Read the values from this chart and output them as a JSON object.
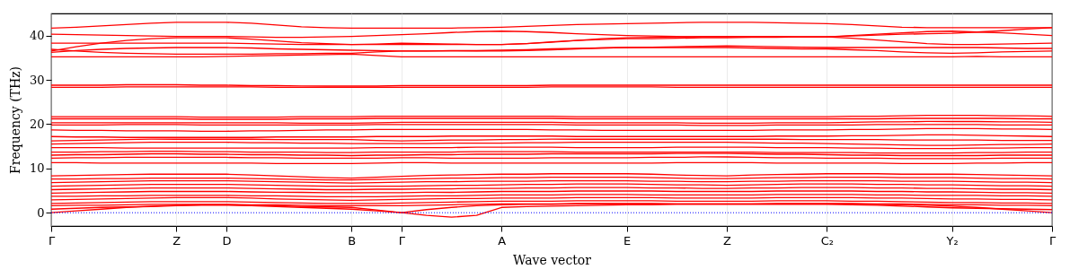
{
  "chart_data": {
    "type": "line",
    "xlabel": "Wave vector",
    "ylabel": "Frequency (THz)",
    "categories": [
      "Γ",
      null,
      null,
      null,
      null,
      "Z",
      null,
      "D",
      null,
      null,
      null,
      null,
      "B",
      null,
      "Γ",
      null,
      null,
      null,
      "A",
      null,
      null,
      null,
      null,
      "E",
      null,
      null,
      null,
      "Z",
      null,
      null,
      null,
      "C₂",
      null,
      null,
      null,
      null,
      "Y₂",
      null,
      null,
      null,
      "Γ"
    ],
    "ylim": [
      -3,
      45
    ],
    "yticks": [
      0,
      10,
      20,
      30,
      40
    ],
    "grid": "x",
    "marker": "none",
    "line_style": "solid",
    "ref_lines": [
      {
        "axis": "y",
        "value": 0,
        "color": "#0000ff",
        "line_style": "dotted"
      }
    ],
    "series": [
      {
        "color": "#ff0000",
        "values": [
          41.7,
          41.9,
          42.2,
          42.5,
          42.8,
          43,
          43,
          43,
          42.8,
          42.4,
          42,
          41.8,
          41.7,
          41.7,
          41.7,
          41.7,
          41.7,
          41.8,
          41.9,
          42.1,
          42.3,
          42.5,
          42.6,
          42.7,
          42.8,
          42.9,
          43,
          43,
          43,
          42.9,
          42.8,
          42.7,
          42.5,
          42.2,
          41.9,
          41.8,
          41.8,
          41.8,
          41.8,
          41.8,
          41.8
        ]
      },
      {
        "color": "#ff0000",
        "values": [
          40.3,
          40.2,
          40.1,
          40,
          39.9,
          39.8,
          39.8,
          39.8,
          39.7,
          39.6,
          39.6,
          39.7,
          39.8,
          40,
          40.2,
          40.4,
          40.7,
          40.9,
          41,
          40.9,
          40.7,
          40.4,
          40.2,
          40,
          39.9,
          39.8,
          39.7,
          39.7,
          39.7,
          39.7,
          39.7,
          39.7,
          40,
          40.3,
          40.6,
          40.9,
          41,
          40.8,
          40.6,
          40.3,
          40
        ]
      },
      {
        "color": "#ff0000",
        "values": [
          36.5,
          37.5,
          38.3,
          38.9,
          39.3,
          39.5,
          39.5,
          39.5,
          39.2,
          38.8,
          38.4,
          38.2,
          38,
          38,
          38,
          38,
          38,
          38,
          38,
          38.2,
          38.5,
          38.9,
          39.3,
          39.5,
          39.6,
          39.7,
          39.8,
          39.8,
          39.8,
          39.8,
          39.7,
          39.7,
          39.4,
          39,
          38.6,
          38.2,
          38,
          38,
          38.1,
          38.2,
          38.3
        ]
      },
      {
        "color": "#ff0000",
        "values": [
          38.3,
          38.3,
          38.3,
          38.3,
          38.3,
          38.3,
          38.3,
          38.3,
          38.2,
          38.1,
          38,
          38,
          38,
          38.1,
          38.3,
          38.2,
          38.1,
          38,
          38,
          38.2,
          38.6,
          38.9,
          39.1,
          39.3,
          39.3,
          39.4,
          39.5,
          39.5,
          39.6,
          39.6,
          39.7,
          39.7,
          39.9,
          40.1,
          40.3,
          40.4,
          40.5,
          40.8,
          41.1,
          41.5,
          41.8
        ]
      },
      {
        "color": "#ff0000",
        "values": [
          36.2,
          36.6,
          36.9,
          37.1,
          37.2,
          37.3,
          37.3,
          37.3,
          37.2,
          37,
          36.9,
          36.8,
          36.7,
          36.6,
          36.5,
          36.5,
          36.6,
          36.6,
          36.7,
          36.8,
          37,
          37.1,
          37.2,
          37.3,
          37.4,
          37.5,
          37.6,
          37.7,
          37.6,
          37.5,
          37.4,
          37.3,
          37.3,
          37.3,
          37.3,
          37.3,
          37.3,
          37.3,
          37.2,
          37.1,
          37.1
        ]
      },
      {
        "color": "#ff0000",
        "values": [
          36.9,
          36.5,
          36.2,
          36,
          35.9,
          35.8,
          35.8,
          35.8,
          35.8,
          35.9,
          35.9,
          36,
          36,
          36.3,
          36.5,
          36.5,
          36.5,
          36.5,
          36.5,
          36.6,
          36.8,
          37,
          37.2,
          37.3,
          37.3,
          37.3,
          37.3,
          37.3,
          37.2,
          37.1,
          37,
          37,
          36.8,
          36.6,
          36.3,
          36.1,
          36,
          36.1,
          36.3,
          36.4,
          36.5
        ]
      },
      {
        "color": "#ff0000",
        "values": [
          35.2,
          35.2,
          35.2,
          35.2,
          35.2,
          35.2,
          35.2,
          35.3,
          35.4,
          35.5,
          35.6,
          35.7,
          35.8,
          35.5,
          35.2,
          35.2,
          35.2,
          35.2,
          35.2,
          35.2,
          35.2,
          35.2,
          35.2,
          35.2,
          35.2,
          35.2,
          35.2,
          35.2,
          35.2,
          35.2,
          35.2,
          35.2,
          35.2,
          35.2,
          35.2,
          35.2,
          35.2,
          35.3,
          35.2,
          35.2,
          35.2
        ]
      },
      {
        "color": "#ff0000",
        "values": [
          28.8,
          28.8,
          28.8,
          28.9,
          28.9,
          28.9,
          28.8,
          28.8,
          28.7,
          28.7,
          28.6,
          28.6,
          28.6,
          28.6,
          28.7,
          28.7,
          28.7,
          28.7,
          28.7,
          28.7,
          28.8,
          28.8,
          28.8,
          28.8,
          28.8,
          28.8,
          28.8,
          28.8,
          28.8,
          28.8,
          28.8,
          28.8,
          28.8,
          28.8,
          28.8,
          28.8,
          28.8,
          28.8,
          28.8,
          28.8,
          28.8
        ]
      },
      {
        "color": "#ff0000",
        "values": [
          28.3,
          28.3,
          28.3,
          28.4,
          28.4,
          28.4,
          28.4,
          28.4,
          28.4,
          28.3,
          28.3,
          28.3,
          28.3,
          28.3,
          28.3,
          28.3,
          28.3,
          28.3,
          28.3,
          28.3,
          28.4,
          28.4,
          28.4,
          28.4,
          28.4,
          28.3,
          28.3,
          28.3,
          28.3,
          28.3,
          28.3,
          28.3,
          28.3,
          28.3,
          28.3,
          28.3,
          28.3,
          28.3,
          28.3,
          28.3,
          28.3
        ]
      },
      {
        "color": "#ff0000",
        "values": [
          21.7,
          21.7,
          21.7,
          21.7,
          21.7,
          21.7,
          21.6,
          21.6,
          21.6,
          21.6,
          21.7,
          21.7,
          21.7,
          21.8,
          21.8,
          21.8,
          21.8,
          21.8,
          21.8,
          21.8,
          21.8,
          21.7,
          21.7,
          21.7,
          21.7,
          21.7,
          21.7,
          21.7,
          21.7,
          21.7,
          21.7,
          21.7,
          21.8,
          21.8,
          21.9,
          22,
          22,
          22,
          21.9,
          21.9,
          21.8
        ]
      },
      {
        "color": "#ff0000",
        "values": [
          21.2,
          21.2,
          21.2,
          21.2,
          21.2,
          21.2,
          21.1,
          21.1,
          21.1,
          21.1,
          21.2,
          21.2,
          21.2,
          21.3,
          21.3,
          21.3,
          21.3,
          21.3,
          21.3,
          21.3,
          21.3,
          21.2,
          21.2,
          21.2,
          21.2,
          21.2,
          21.2,
          21.2,
          21.2,
          21.2,
          21.2,
          21.2,
          21.2,
          21.2,
          21.3,
          21.3,
          21.3,
          21.3,
          21.3,
          21.2,
          21.2
        ]
      },
      {
        "color": "#ff0000",
        "values": [
          20.3,
          20.3,
          20.3,
          20.3,
          20.3,
          20.3,
          20.3,
          20.3,
          20.3,
          20.3,
          20.2,
          20.2,
          20.2,
          20.3,
          20.4,
          20.4,
          20.4,
          20.4,
          20.4,
          20.4,
          20.4,
          20.3,
          20.3,
          20.3,
          20.3,
          20.3,
          20.2,
          20.2,
          20.2,
          20.3,
          20.3,
          20.3,
          20.4,
          20.5,
          20.5,
          20.6,
          20.6,
          20.6,
          20.5,
          20.5,
          20.4
        ]
      },
      {
        "color": "#ff0000",
        "values": [
          19.8,
          19.8,
          19.8,
          19.9,
          19.9,
          19.9,
          19.8,
          19.8,
          19.8,
          19.8,
          19.8,
          19.8,
          19.8,
          19.9,
          19.9,
          19.9,
          19.9,
          19.9,
          19.9,
          19.9,
          19.9,
          19.8,
          19.8,
          19.8,
          19.8,
          19.8,
          19.7,
          19.7,
          19.7,
          19.8,
          19.8,
          19.8,
          19.8,
          19.9,
          19.9,
          19.9,
          19.9,
          19.9,
          19.8,
          19.8,
          19.8
        ]
      },
      {
        "color": "#ff0000",
        "values": [
          18.7,
          18.6,
          18.6,
          18.5,
          18.5,
          18.5,
          18.4,
          18.4,
          18.5,
          18.5,
          18.6,
          18.7,
          18.7,
          18.8,
          18.8,
          18.8,
          18.8,
          18.8,
          18.8,
          18.8,
          18.7,
          18.7,
          18.6,
          18.6,
          18.6,
          18.6,
          18.6,
          18.6,
          18.6,
          18.7,
          18.7,
          18.7,
          18.8,
          18.8,
          18.9,
          19,
          19,
          19,
          18.9,
          18.9,
          18.8
        ]
      },
      {
        "color": "#ff0000",
        "values": [
          17.2,
          17.1,
          17.1,
          17,
          17,
          17,
          17,
          17,
          17,
          17.1,
          17.1,
          17.1,
          17.1,
          17.2,
          17.2,
          17.2,
          17.3,
          17.3,
          17.3,
          17.3,
          17.3,
          17.2,
          17.2,
          17.2,
          17.2,
          17.2,
          17.2,
          17.2,
          17.2,
          17.3,
          17.3,
          17.3,
          17.4,
          17.4,
          17.5,
          17.6,
          17.6,
          17.5,
          17.4,
          17.3,
          17.2
        ]
      },
      {
        "color": "#ff0000",
        "values": [
          16.2,
          16.3,
          16.4,
          16.5,
          16.6,
          16.6,
          16.6,
          16.6,
          16.6,
          16.5,
          16.5,
          16.5,
          16.5,
          16.3,
          16.2,
          16.3,
          16.4,
          16.4,
          16.5,
          16.5,
          16.6,
          16.6,
          16.6,
          16.6,
          16.6,
          16.6,
          16.6,
          16.6,
          16.6,
          16.6,
          16.5,
          16.5,
          16.5,
          16.5,
          16.4,
          16.4,
          16.4,
          16.4,
          16.3,
          16.3,
          16.3
        ]
      },
      {
        "color": "#ff0000",
        "values": [
          15.5,
          15.6,
          15.7,
          15.8,
          15.9,
          15.9,
          15.9,
          15.9,
          15.8,
          15.8,
          15.7,
          15.7,
          15.6,
          15.6,
          15.6,
          15.6,
          15.7,
          15.7,
          15.7,
          15.8,
          15.8,
          15.9,
          15.9,
          15.9,
          15.9,
          15.9,
          15.9,
          15.9,
          15.8,
          15.7,
          15.7,
          15.6,
          15.5,
          15.4,
          15.3,
          15.2,
          15.2,
          15.3,
          15.4,
          15.4,
          15.5
        ]
      },
      {
        "color": "#ff0000",
        "values": [
          14.7,
          14.7,
          14.7,
          14.6,
          14.6,
          14.6,
          14.6,
          14.6,
          14.6,
          14.6,
          14.6,
          14.6,
          14.6,
          14.7,
          14.7,
          14.7,
          14.7,
          14.8,
          14.8,
          14.8,
          14.8,
          14.7,
          14.7,
          14.7,
          14.7,
          14.8,
          14.8,
          14.8,
          14.8,
          14.7,
          14.7,
          14.7,
          14.6,
          14.6,
          14.5,
          14.5,
          14.5,
          14.6,
          14.6,
          14.7,
          14.7
        ]
      },
      {
        "color": "#ff0000",
        "values": [
          13.7,
          13.7,
          13.8,
          13.8,
          13.9,
          13.9,
          13.8,
          13.8,
          13.7,
          13.7,
          13.7,
          13.6,
          13.6,
          13.7,
          13.7,
          13.7,
          13.7,
          13.8,
          13.8,
          13.8,
          13.8,
          13.7,
          13.7,
          13.7,
          13.7,
          13.7,
          13.7,
          13.7,
          13.7,
          13.6,
          13.6,
          13.6,
          13.6,
          13.5,
          13.5,
          13.5,
          13.5,
          13.6,
          13.6,
          13.7,
          13.7
        ]
      },
      {
        "color": "#ff0000",
        "values": [
          13,
          13.1,
          13.1,
          13.2,
          13.3,
          13.3,
          13.2,
          13.2,
          13.1,
          13.1,
          13,
          13,
          12.9,
          13,
          13,
          13.1,
          13.1,
          13.2,
          13.2,
          13.2,
          13.3,
          13.3,
          13.3,
          13.3,
          13.3,
          13.4,
          13.4,
          13.4,
          13.3,
          13.2,
          13.2,
          13.1,
          13,
          13,
          12.9,
          12.9,
          12.9,
          12.9,
          13,
          13,
          13
        ]
      },
      {
        "color": "#ff0000",
        "values": [
          12.3,
          12.4,
          12.4,
          12.5,
          12.5,
          12.5,
          12.5,
          12.5,
          12.4,
          12.4,
          12.3,
          12.3,
          12.3,
          12.3,
          12.4,
          12.4,
          12.3,
          12.3,
          12.3,
          12.3,
          12.4,
          12.4,
          12.4,
          12.4,
          12.5,
          12.5,
          12.6,
          12.6,
          12.5,
          12.4,
          12.4,
          12.3,
          12.3,
          12.3,
          12.2,
          12.2,
          12.2,
          12.2,
          12.3,
          12.3,
          12.3
        ]
      },
      {
        "color": "#ff0000",
        "values": [
          11.3,
          11.3,
          11.2,
          11.2,
          11.2,
          11.2,
          11.2,
          11.2,
          11.2,
          11.1,
          11.1,
          11.1,
          11.1,
          11.2,
          11.3,
          11.3,
          11.2,
          11.2,
          11.2,
          11.2,
          11.2,
          11.2,
          11.2,
          11.2,
          11.2,
          11.3,
          11.3,
          11.3,
          11.3,
          11.2,
          11.2,
          11.2,
          11.2,
          11.2,
          11.1,
          11.1,
          11.1,
          11.2,
          11.2,
          11.3,
          11.3
        ]
      },
      {
        "color": "#ff0000",
        "values": [
          8.3,
          8.4,
          8.5,
          8.6,
          8.7,
          8.7,
          8.7,
          8.7,
          8.5,
          8.3,
          8.1,
          7.9,
          7.8,
          8,
          8.2,
          8.4,
          8.5,
          8.6,
          8.7,
          8.7,
          8.8,
          8.8,
          8.8,
          8.8,
          8.7,
          8.5,
          8.4,
          8.3,
          8.5,
          8.6,
          8.7,
          8.8,
          8.8,
          8.8,
          8.7,
          8.7,
          8.7,
          8.6,
          8.5,
          8.4,
          8.3
        ]
      },
      {
        "color": "#ff0000",
        "values": [
          7.6,
          7.6,
          7.7,
          7.7,
          7.8,
          7.8,
          7.8,
          7.8,
          7.7,
          7.6,
          7.5,
          7.4,
          7.4,
          7.5,
          7.6,
          7.7,
          7.8,
          7.8,
          7.9,
          7.9,
          8,
          8,
          8,
          8,
          7.9,
          7.8,
          7.7,
          7.7,
          7.8,
          7.9,
          7.9,
          8,
          8,
          8,
          7.9,
          7.9,
          7.9,
          7.8,
          7.7,
          7.7,
          7.6
        ]
      },
      {
        "color": "#ff0000",
        "values": [
          6.8,
          6.9,
          7,
          7.1,
          7.2,
          7.2,
          7.2,
          7.2,
          7.1,
          7,
          6.9,
          6.8,
          6.7,
          6.8,
          6.9,
          7,
          7,
          7.1,
          7.1,
          7.1,
          7.2,
          7.2,
          7.2,
          7.2,
          7.1,
          7.1,
          7,
          7,
          7.1,
          7.1,
          7.2,
          7.2,
          7.2,
          7.2,
          7.1,
          7.1,
          7.1,
          7,
          6.9,
          6.9,
          6.8
        ]
      },
      {
        "color": "#ff0000",
        "values": [
          6,
          6.1,
          6.2,
          6.3,
          6.4,
          6.4,
          6.4,
          6.4,
          6.3,
          6.2,
          6.1,
          6,
          6,
          6,
          6,
          6.1,
          6.2,
          6.2,
          6.3,
          6.4,
          6.4,
          6.5,
          6.5,
          6.5,
          6.4,
          6.3,
          6.3,
          6.2,
          6.3,
          6.4,
          6.5,
          6.5,
          6.5,
          6.4,
          6.4,
          6.3,
          6.3,
          6.2,
          6.1,
          6.1,
          6
        ]
      },
      {
        "color": "#ff0000",
        "values": [
          5.2,
          5.3,
          5.4,
          5.5,
          5.6,
          5.6,
          5.6,
          5.6,
          5.5,
          5.4,
          5.3,
          5.2,
          5.2,
          5.3,
          5.3,
          5.4,
          5.4,
          5.5,
          5.5,
          5.6,
          5.6,
          5.7,
          5.7,
          5.7,
          5.6,
          5.6,
          5.5,
          5.5,
          5.6,
          5.6,
          5.7,
          5.7,
          5.7,
          5.6,
          5.6,
          5.5,
          5.5,
          5.4,
          5.3,
          5.3,
          5.2
        ]
      },
      {
        "color": "#ff0000",
        "values": [
          4.4,
          4.5,
          4.6,
          4.7,
          4.8,
          4.8,
          4.8,
          4.8,
          4.7,
          4.6,
          4.6,
          4.5,
          4.5,
          4.5,
          4.5,
          4.6,
          4.6,
          4.7,
          4.8,
          4.8,
          4.8,
          4.9,
          4.9,
          4.9,
          4.9,
          4.8,
          4.8,
          4.8,
          4.8,
          4.9,
          4.9,
          4.9,
          4.9,
          4.8,
          4.8,
          4.7,
          4.7,
          4.6,
          4.5,
          4.5,
          4.4
        ]
      },
      {
        "color": "#ff0000",
        "values": [
          3.7,
          3.7,
          3.8,
          3.8,
          3.9,
          3.9,
          3.9,
          3.9,
          3.8,
          3.8,
          3.7,
          3.6,
          3.6,
          3.6,
          3.7,
          3.8,
          3.8,
          3.9,
          4,
          4,
          4,
          4.1,
          4.1,
          4.1,
          4,
          4,
          4,
          4,
          4,
          4.1,
          4.1,
          4.1,
          4.1,
          4,
          4,
          3.9,
          3.9,
          3.9,
          3.8,
          3.8,
          3.7
        ]
      },
      {
        "color": "#ff0000",
        "values": [
          2.9,
          3,
          3.1,
          3.2,
          3.3,
          3.4,
          3.4,
          3.4,
          3.3,
          3.1,
          3,
          2.9,
          2.8,
          2.9,
          3,
          3.1,
          3.2,
          3.2,
          3.3,
          3.3,
          3.3,
          3.4,
          3.4,
          3.4,
          3.4,
          3.3,
          3.3,
          3.3,
          3.3,
          3.4,
          3.4,
          3.4,
          3.4,
          3.3,
          3.3,
          3.2,
          3.1,
          3.1,
          3,
          3,
          2.9
        ]
      },
      {
        "color": "#ff0000",
        "values": [
          2.1,
          2.2,
          2.3,
          2.4,
          2.5,
          2.5,
          2.5,
          2.5,
          2.4,
          2.3,
          2.2,
          2.1,
          2.1,
          2.1,
          2.2,
          2.3,
          2.4,
          2.5,
          2.6,
          2.6,
          2.6,
          2.7,
          2.7,
          2.7,
          2.7,
          2.6,
          2.6,
          2.6,
          2.6,
          2.7,
          2.7,
          2.7,
          2.6,
          2.6,
          2.5,
          2.4,
          2.3,
          2.3,
          2.2,
          2.2,
          2.1
        ]
      },
      {
        "color": "#ff0000",
        "values": [
          1.6,
          1.7,
          1.7,
          1.8,
          1.9,
          1.9,
          1.9,
          1.9,
          1.8,
          1.8,
          1.7,
          1.6,
          1.6,
          1.6,
          1.6,
          1.7,
          1.8,
          1.9,
          2,
          2,
          2,
          2.1,
          2.1,
          2.1,
          2.1,
          2,
          2,
          2,
          2,
          2.1,
          2.1,
          2.1,
          2.1,
          2,
          2,
          1.9,
          1.8,
          1.8,
          1.7,
          1.7,
          1.6
        ]
      },
      {
        "color": "#ff0000",
        "values": [
          0,
          0.4,
          0.8,
          1.2,
          1.5,
          1.7,
          1.8,
          1.8,
          1.7,
          1.6,
          1.4,
          1.3,
          1.2,
          0.6,
          0,
          0.7,
          1.2,
          1.6,
          1.8,
          1.9,
          1.9,
          2,
          2,
          2,
          2,
          2,
          2,
          2,
          2,
          2,
          2,
          2,
          2,
          1.9,
          1.8,
          1.7,
          1.5,
          1.2,
          0.8,
          0.4,
          0
        ]
      },
      {
        "color": "#ff0000",
        "values": [
          0.8,
          1,
          1.2,
          1.3,
          1.4,
          1.6,
          1.7,
          1.7,
          1.6,
          1.4,
          1.2,
          1,
          0.8,
          0.4,
          0,
          -0.6,
          -1,
          -0.6,
          1.2,
          1.4,
          1.5,
          1.6,
          1.7,
          1.8,
          1.8,
          1.9,
          1.9,
          1.9,
          1.9,
          1.9,
          1.9,
          1.9,
          1.8,
          1.7,
          1.5,
          1.3,
          1.1,
          1,
          0.9,
          0.8,
          0.7
        ]
      }
    ]
  }
}
